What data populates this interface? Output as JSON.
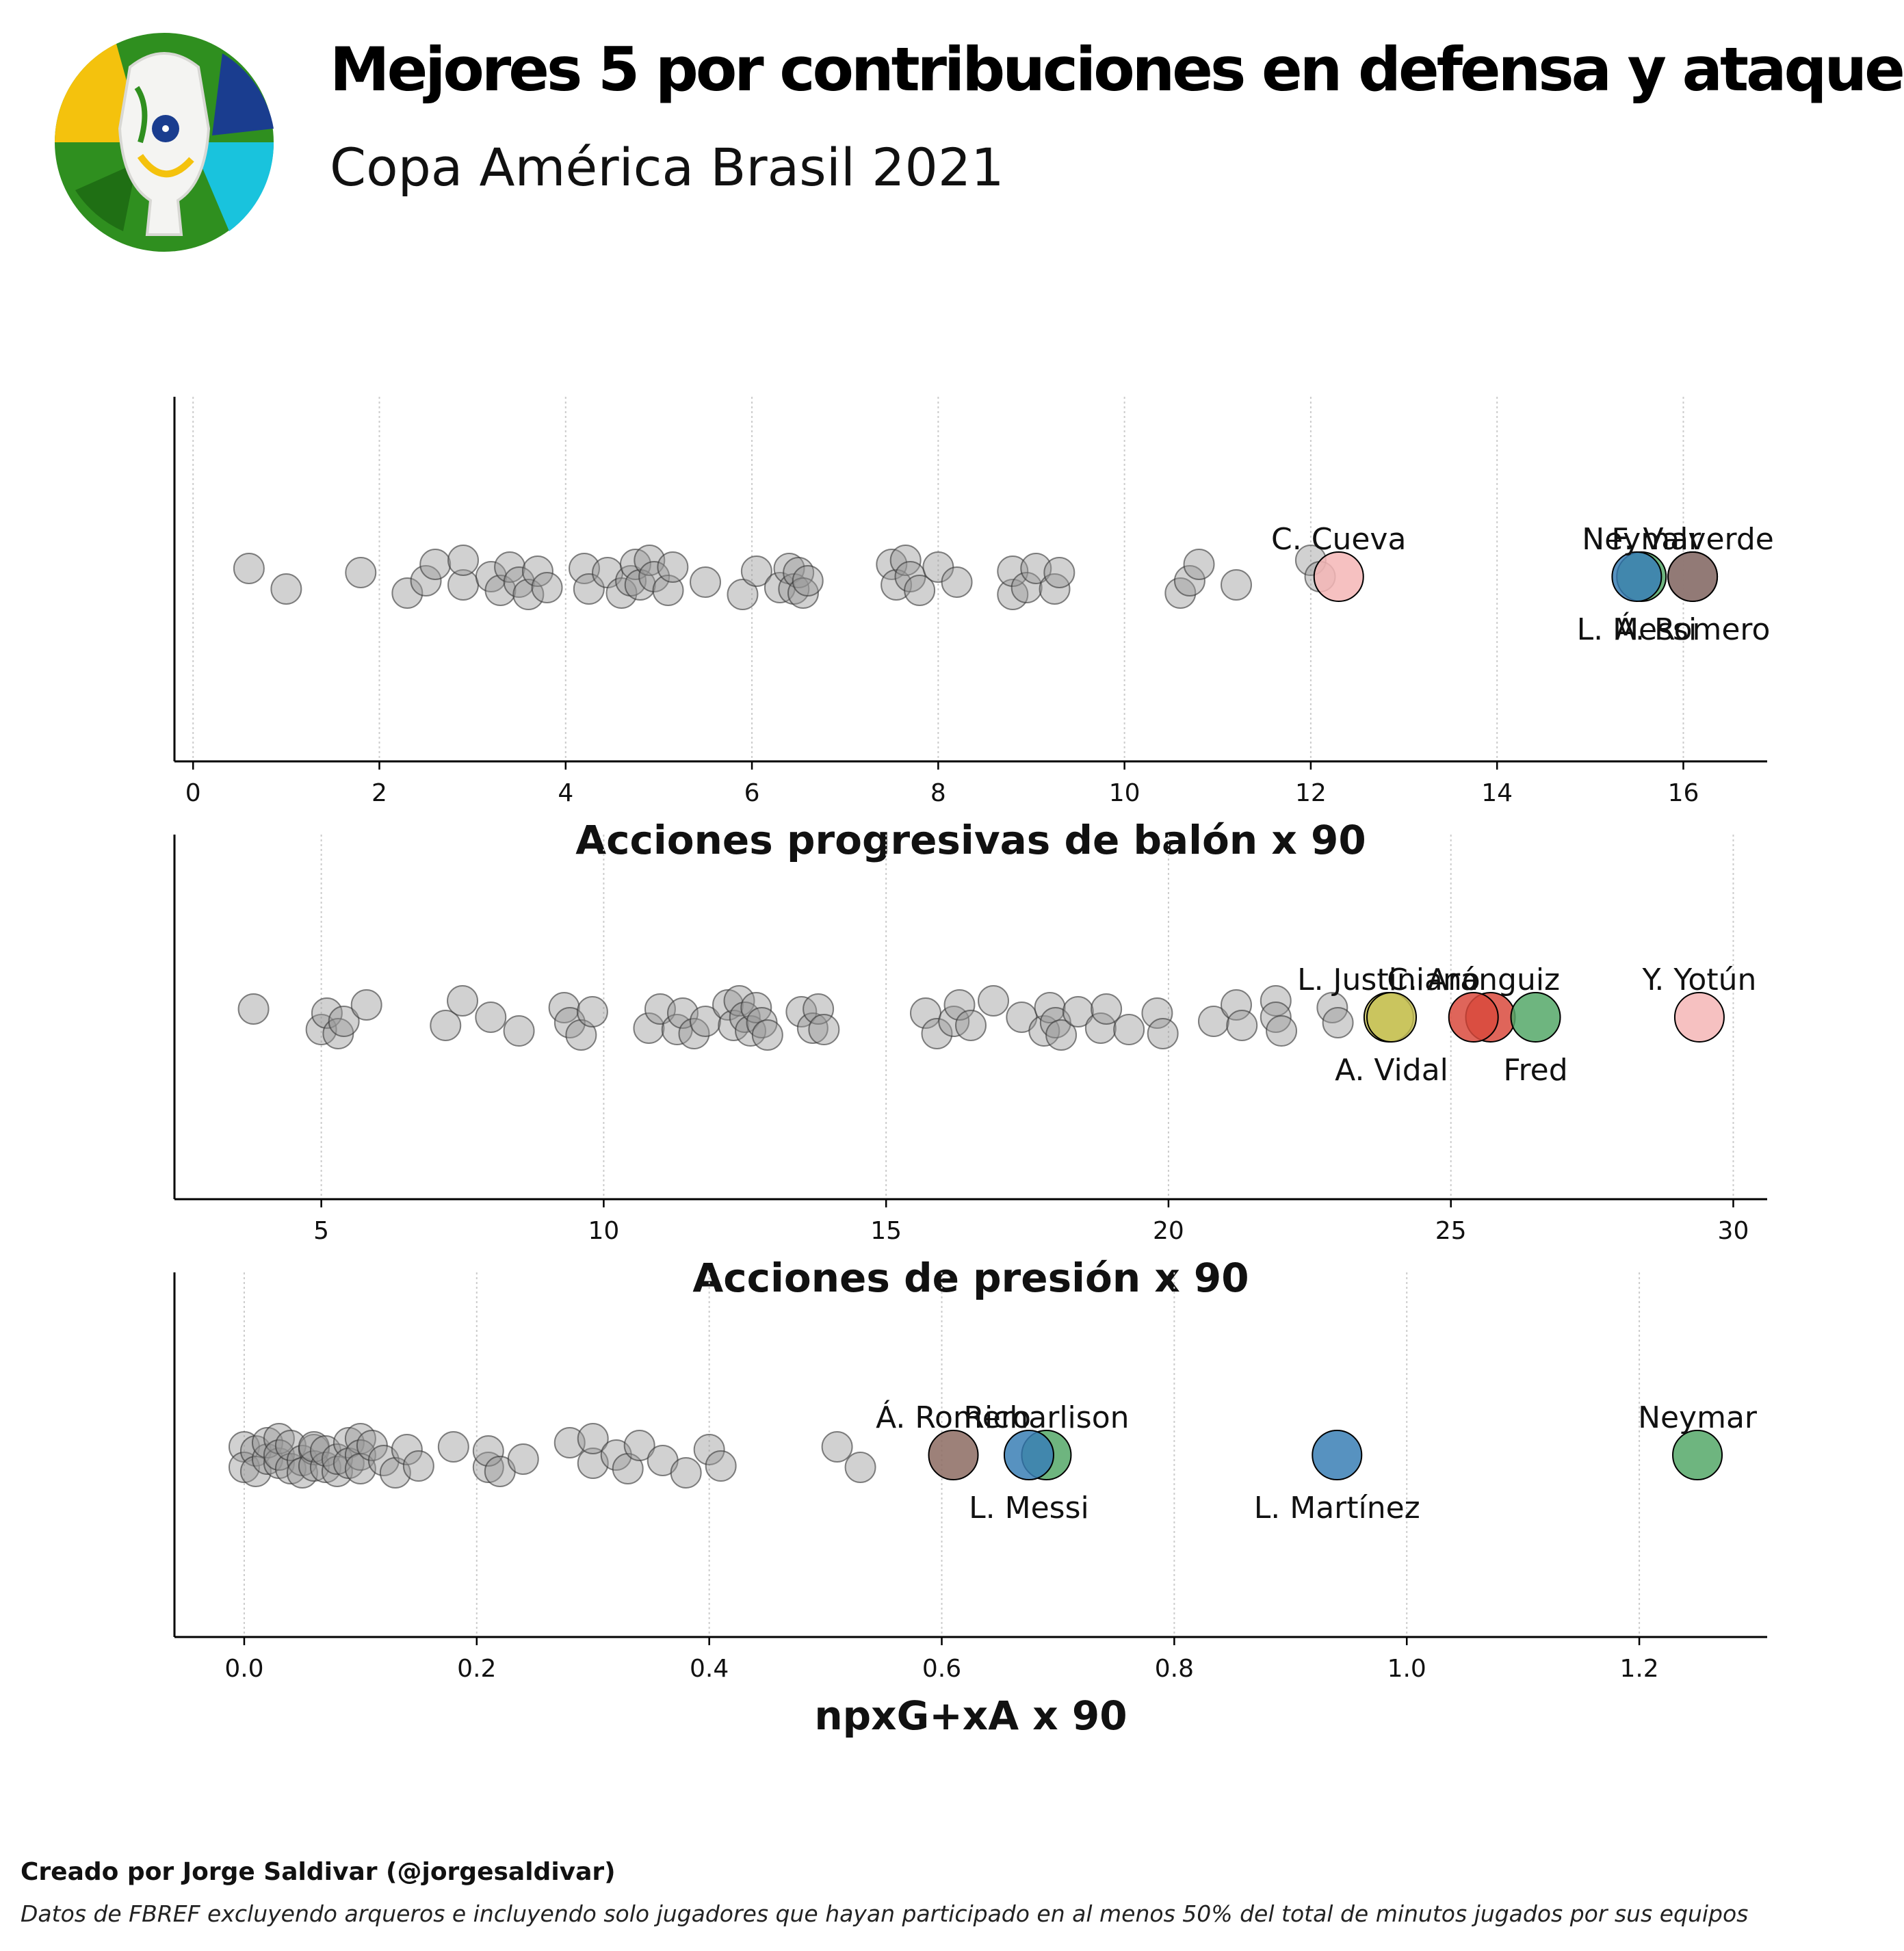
{
  "header": {
    "title": "Mejores 5 por contribuciones en defensa y ataque",
    "subtitle": "Copa América Brasil 2021"
  },
  "footer": {
    "credit": "Creado por Jorge Saldivar (@jorgesaldivar)",
    "source": "Datos de FBREF excluyendo arqueros e incluyendo solo jugadores que hayan participado en al menos 50% del total de minutos jugados por sus equipos"
  },
  "colors": {
    "background_point": "#999999",
    "grid": "#cccccc"
  },
  "chart_data": [
    {
      "type": "scatter",
      "xlabel": "Acciones progresivas de balón x 90",
      "xlim": [
        -0.2,
        16.9
      ],
      "ticks": [
        0,
        2,
        4,
        6,
        8,
        10,
        12,
        14,
        16
      ],
      "grid": "vertical dotted",
      "others": [
        0.6,
        1.0,
        1.8,
        2.3,
        2.5,
        2.6,
        2.9,
        2.9,
        3.2,
        3.3,
        3.4,
        3.5,
        3.6,
        3.7,
        3.8,
        4.2,
        4.25,
        4.45,
        4.6,
        4.7,
        4.75,
        4.8,
        4.9,
        4.95,
        5.1,
        5.15,
        5.5,
        5.9,
        6.05,
        6.3,
        6.4,
        6.45,
        6.5,
        6.55,
        6.6,
        7.5,
        7.55,
        7.65,
        7.7,
        7.8,
        8.0,
        8.2,
        8.8,
        8.8,
        8.95,
        9.05,
        9.25,
        9.3,
        10.6,
        10.7,
        10.8,
        11.2,
        12.0,
        12.1
      ],
      "highlighted": [
        {
          "name": "C. Cueva",
          "x": 12.3,
          "color": "#f4b6b6",
          "label_pos": "above"
        },
        {
          "name": "Neymar",
          "x": 15.55,
          "color": "#55a868",
          "label_pos": "above"
        },
        {
          "name": "L. Messi",
          "x": 15.5,
          "color": "#3a7fb5",
          "label_pos": "below"
        },
        {
          "name": "F. Valverde",
          "x": 16.1,
          "color": "#a6c5e8",
          "label_pos": "above"
        },
        {
          "name": "Á. Romero",
          "x": 16.1,
          "color": "#8c6b62",
          "label_pos": "below"
        }
      ]
    },
    {
      "type": "scatter",
      "xlabel": "Acciones de presión x 90",
      "xlim": [
        2.4,
        30.6
      ],
      "ticks": [
        5,
        10,
        15,
        20,
        25,
        30
      ],
      "grid": "vertical dotted",
      "others": [
        3.8,
        5.0,
        5.1,
        5.3,
        5.4,
        5.8,
        7.2,
        7.5,
        8.0,
        8.5,
        9.3,
        9.4,
        9.6,
        9.8,
        10.8,
        11.0,
        11.3,
        11.4,
        11.6,
        11.8,
        12.2,
        12.3,
        12.4,
        12.5,
        12.6,
        12.7,
        12.8,
        12.9,
        13.5,
        13.7,
        13.8,
        13.9,
        15.7,
        15.9,
        16.2,
        16.3,
        16.5,
        16.9,
        17.4,
        17.8,
        17.9,
        18.0,
        18.1,
        18.4,
        18.8,
        18.9,
        19.3,
        19.8,
        19.9,
        20.8,
        21.2,
        21.3,
        21.9,
        21.9,
        22.0,
        22.9,
        23.0
      ],
      "highlighted": [
        {
          "name": "L. Justiniano",
          "x": 23.9,
          "color": "#c9c35a",
          "label_pos": "above"
        },
        {
          "name": "A. Vidal",
          "x": 23.95,
          "color": "#c9c35a",
          "label_pos": "below"
        },
        {
          "name": "C. Aránguiz",
          "x": 25.4,
          "color": "#d94a3d",
          "label_pos": "above"
        },
        {
          "name": "Fred",
          "x": 26.5,
          "color": "#55a868",
          "label_pos": "below"
        },
        {
          "name": "Y. Yotún",
          "x": 29.4,
          "color": "#f4b6b6",
          "label_pos": "above"
        }
      ],
      "extra_points": [
        {
          "x": 25.7,
          "color": "#d94a3d"
        }
      ]
    },
    {
      "type": "scatter",
      "xlabel": "npxG+xA x 90",
      "xlim": [
        -0.06,
        1.31
      ],
      "ticks": [
        0.0,
        0.2,
        0.4,
        0.6,
        0.8,
        1.0,
        1.2
      ],
      "tick_labels": [
        "0.0",
        "0.2",
        "0.4",
        "0.6",
        "0.8",
        "1.0",
        "1.2"
      ],
      "grid": "vertical dotted",
      "others": [
        0.0,
        0.0,
        0.01,
        0.01,
        0.02,
        0.02,
        0.03,
        0.03,
        0.03,
        0.04,
        0.04,
        0.05,
        0.05,
        0.06,
        0.06,
        0.06,
        0.07,
        0.07,
        0.08,
        0.08,
        0.09,
        0.09,
        0.1,
        0.1,
        0.1,
        0.11,
        0.12,
        0.13,
        0.14,
        0.15,
        0.18,
        0.21,
        0.21,
        0.22,
        0.24,
        0.28,
        0.3,
        0.3,
        0.32,
        0.33,
        0.34,
        0.36,
        0.38,
        0.4,
        0.41,
        0.51,
        0.53
      ],
      "highlighted": [
        {
          "name": "Á. Romero",
          "x": 0.61,
          "color": "#8c6b62",
          "label_pos": "above"
        },
        {
          "name": "Richarlison",
          "x": 0.69,
          "color": "#55a868",
          "label_pos": "above"
        },
        {
          "name": "L. Messi",
          "x": 0.675,
          "color": "#3a7fb5",
          "label_pos": "below"
        },
        {
          "name": "L. Martínez",
          "x": 0.94,
          "color": "#3a7fb5",
          "label_pos": "below"
        },
        {
          "name": "Neymar",
          "x": 1.25,
          "color": "#55a868",
          "label_pos": "above"
        }
      ]
    }
  ]
}
